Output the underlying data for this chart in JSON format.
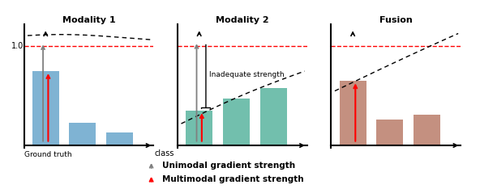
{
  "title1": "Modality 1",
  "title2": "Modality 2",
  "title3": "Fusion",
  "bars1": [
    0.75,
    0.23,
    0.13
  ],
  "bars2": [
    0.35,
    0.47,
    0.58
  ],
  "bars3": [
    0.65,
    0.26,
    0.31
  ],
  "color1": "#7fb3d3",
  "color2": "#72bfad",
  "color3": "#c49080",
  "red_line_y": 1.0,
  "ylim": [
    -0.02,
    1.22
  ],
  "xlabel1": "class",
  "label_ground": "Ground truth",
  "inadequate_label": "Inadequate strength",
  "legend_label1": "Unimodal gradient strength",
  "legend_label2": "Multimodal gradient strength",
  "bg_color": "#ffffff"
}
